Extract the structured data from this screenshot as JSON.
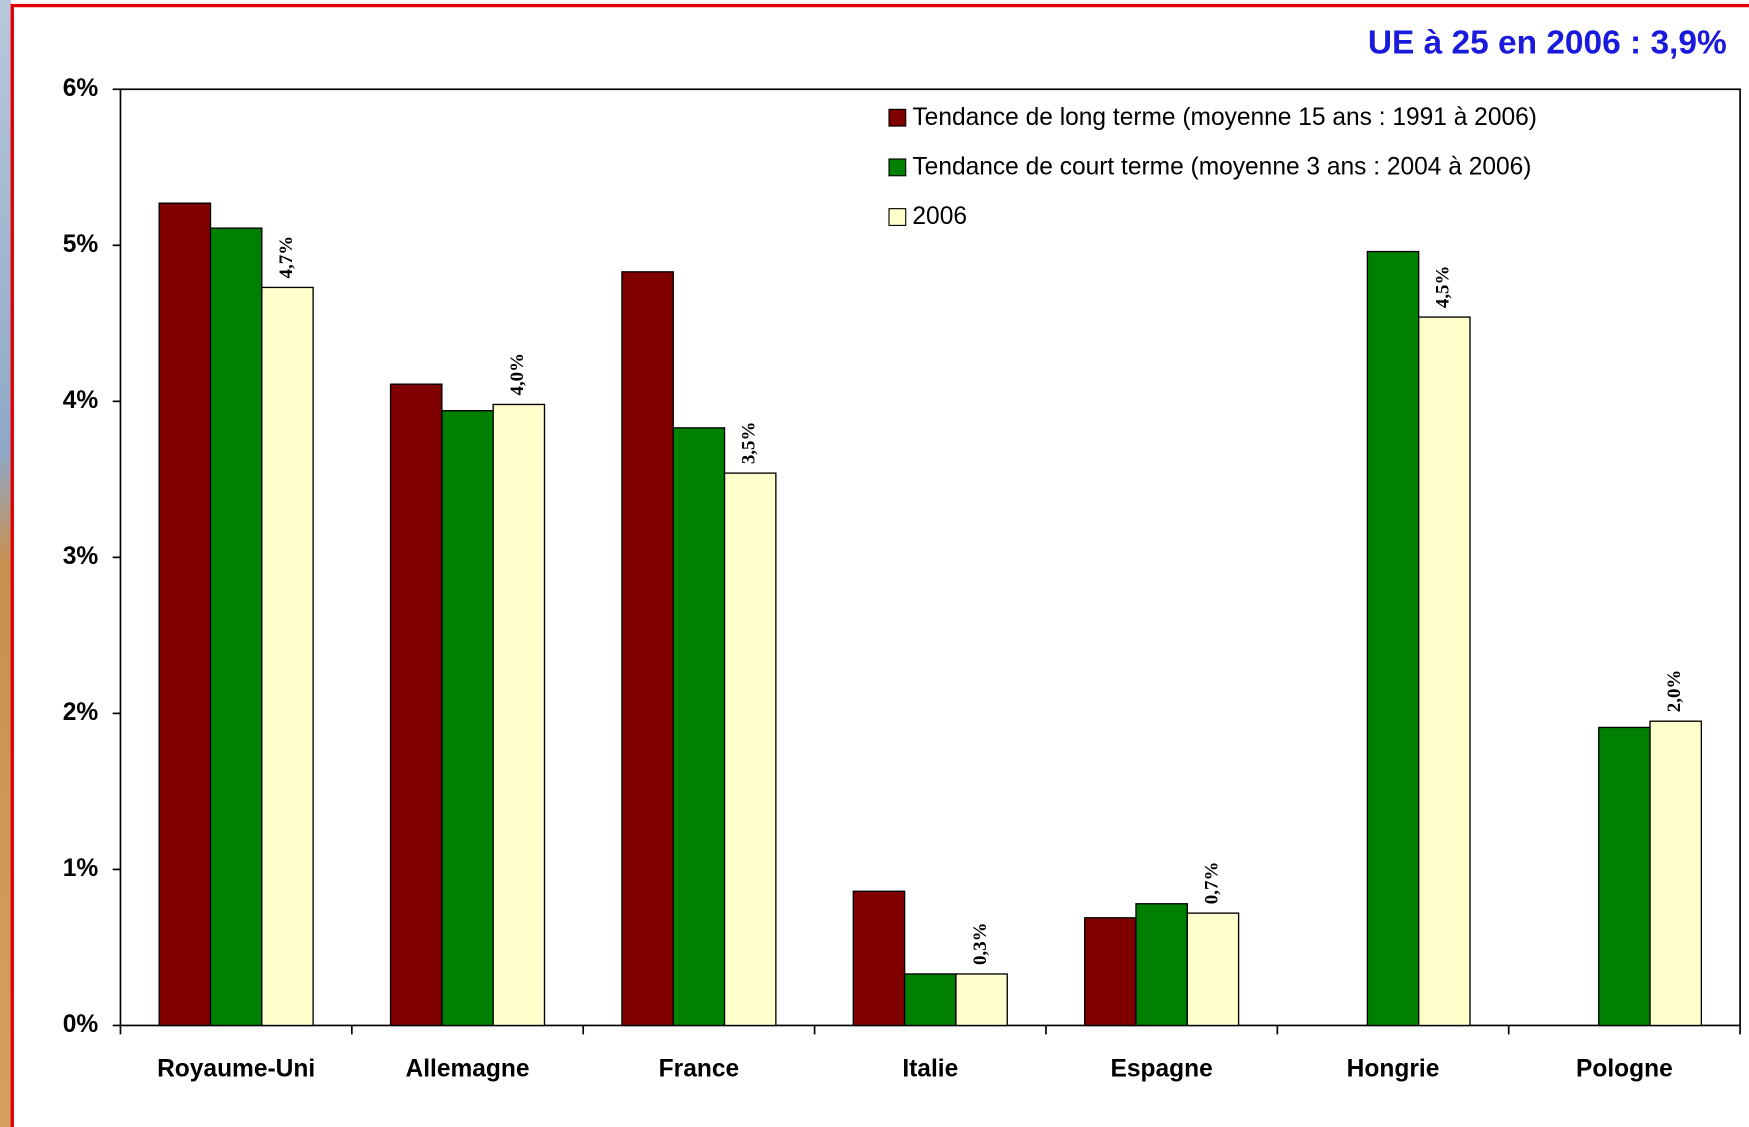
{
  "chart_data": {
    "type": "bar",
    "title": "UE à 25 en 2006 : 3,9%",
    "categories": [
      "Royaume-Uni",
      "Allemagne",
      "France",
      "Italie",
      "Espagne",
      "Hongrie",
      "Pologne"
    ],
    "series": [
      {
        "name": "Tendance de long terme (moyenne 15 ans : 1991 à 2006)",
        "color": "#800000",
        "values": [
          5.27,
          4.11,
          4.83,
          0.86,
          0.69,
          null,
          null
        ]
      },
      {
        "name": "Tendance de court terme (moyenne 3 ans : 2004 à 2006)",
        "color": "#008000",
        "values": [
          5.11,
          3.94,
          3.83,
          0.33,
          0.78,
          4.96,
          1.91
        ]
      },
      {
        "name": "2006",
        "color": "#ffffcc",
        "values": [
          4.73,
          3.98,
          3.54,
          0.33,
          0.72,
          4.54,
          1.95
        ],
        "value_labels": [
          "4,7%",
          "4,0%",
          "3,5%",
          "0,3%",
          "0,7%",
          "4,5%",
          "2,0%"
        ]
      }
    ],
    "ylim": [
      0,
      6
    ],
    "yticks": [
      {
        "value": 0,
        "label": "0%"
      },
      {
        "value": 1,
        "label": "1%"
      },
      {
        "value": 2,
        "label": "2%"
      },
      {
        "value": 3,
        "label": "3%"
      },
      {
        "value": 4,
        "label": "4%"
      },
      {
        "value": 5,
        "label": "5%"
      },
      {
        "value": 6,
        "label": "6%"
      }
    ],
    "legend": "top-right"
  }
}
